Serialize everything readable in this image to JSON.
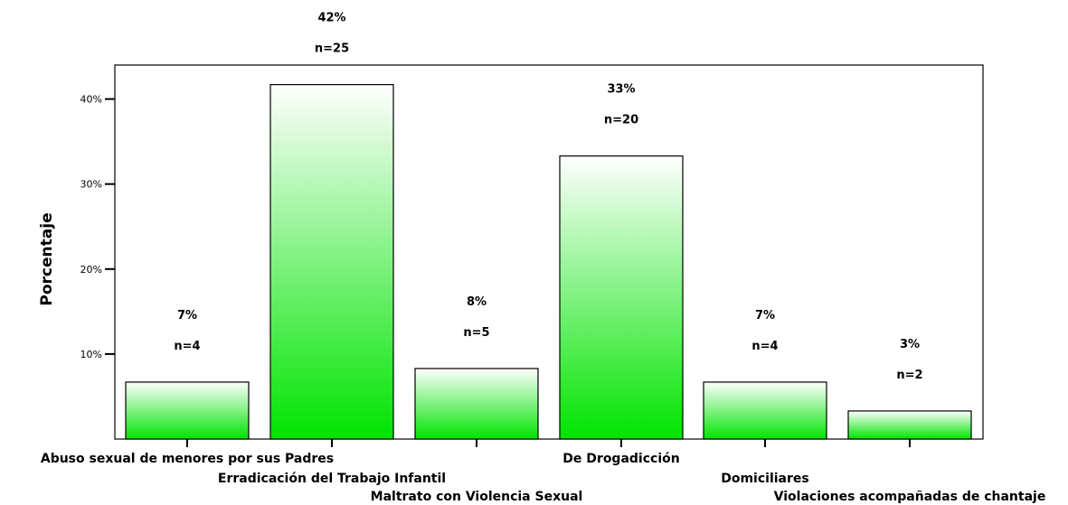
{
  "chart_data": {
    "type": "bar",
    "categories": [
      "Abuso sexual de menores por sus Padres",
      "Erradicación del Trabajo Infantil",
      "Maltrato con Violencia Sexual",
      "De Drogadicción",
      "Domiciliares",
      "Violaciones acompañadas de chantaje"
    ],
    "values": [
      6.7,
      41.7,
      8.3,
      33.3,
      6.7,
      3.3
    ],
    "pct_labels": [
      "7%",
      "42%",
      "8%",
      "33%",
      "7%",
      "3%"
    ],
    "n_labels": [
      "n=4",
      "n=25",
      "n=5",
      "n=20",
      "n=4",
      "n=2"
    ],
    "ylabel": "Porcentaje",
    "yticks": [
      "10%",
      "20%",
      "30%",
      "40%"
    ],
    "ytick_values": [
      10,
      20,
      30,
      40
    ],
    "ylim": [
      0,
      44
    ],
    "grid": false,
    "colors": {
      "bar_top": "#ffffff",
      "bar_bottom": "#00e400",
      "stroke": "#000000"
    }
  }
}
